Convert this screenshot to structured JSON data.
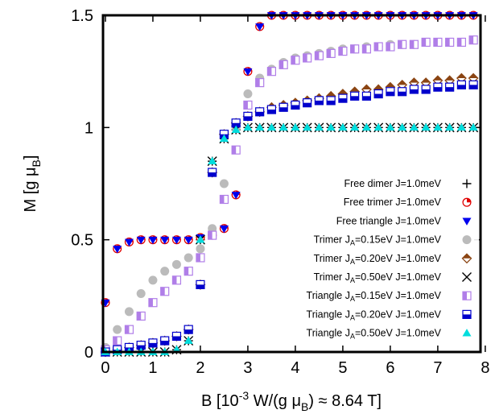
{
  "chart_data": {
    "type": "scatter",
    "xlabel": {
      "main": "B [10",
      "sup": "-3",
      "mid": " W/(g μ",
      "sub": "B",
      "tail": ") ≈ 8.64 T]"
    },
    "ylabel": {
      "main": "M [g μ",
      "sub": "B",
      "tail": "]"
    },
    "xlim": [
      -0.05,
      7.9
    ],
    "ylim": [
      0,
      1.5
    ],
    "xticks": [
      "0",
      "1",
      "2",
      "3",
      "4",
      "5",
      "6",
      "7",
      "8"
    ],
    "yticks": [
      "0",
      "0.5",
      "1",
      "1.5"
    ],
    "legend_position": "bottom-right",
    "series": [
      {
        "name": "Free dimer J=1.0meV",
        "label_parts": [
          "Free dimer J=1.0meV"
        ],
        "marker": "plus",
        "color": "#000000",
        "y": [
          0,
          0,
          0,
          0,
          0,
          0,
          0.01,
          0.05,
          0.5,
          0.85,
          0.95,
          0.99,
          1.0,
          1.0,
          1.0,
          1.0,
          1.0,
          1.0,
          1.0,
          1.0,
          1.0,
          1.0,
          1.0,
          1.0,
          1.0,
          1.0,
          1.0,
          1.0,
          1.0,
          1.0,
          1.0,
          1.0
        ]
      },
      {
        "name": "Free trimer J=1.0meV",
        "label_parts": [
          "Free trimer J=1.0meV"
        ],
        "marker": "circle-half",
        "color": "#e00000",
        "y": [
          0.22,
          0.46,
          0.49,
          0.5,
          0.5,
          0.5,
          0.5,
          0.5,
          0.51,
          0.52,
          0.55,
          0.7,
          1.25,
          1.45,
          1.5,
          1.5,
          1.5,
          1.5,
          1.5,
          1.5,
          1.5,
          1.5,
          1.5,
          1.5,
          1.5,
          1.5,
          1.5,
          1.5,
          1.5,
          1.5,
          1.5,
          1.5
        ]
      },
      {
        "name": "Free triangle J=1.0meV",
        "label_parts": [
          "Free triangle J=1.0meV"
        ],
        "marker": "triangle-down",
        "color": "#0000ee",
        "y": [
          0.22,
          0.46,
          0.49,
          0.5,
          0.5,
          0.5,
          0.5,
          0.5,
          0.51,
          0.52,
          0.55,
          0.7,
          1.25,
          1.45,
          1.5,
          1.5,
          1.5,
          1.5,
          1.5,
          1.5,
          1.5,
          1.5,
          1.5,
          1.5,
          1.5,
          1.5,
          1.5,
          1.5,
          1.5,
          1.5,
          1.5,
          1.5
        ]
      },
      {
        "name": "Trimer JA=0.15eV J=1.0meV",
        "label_parts": [
          "Trimer J",
          "A",
          "=0.15eV J=1.0meV"
        ],
        "marker": "circle",
        "color": "#bbbbbb",
        "y": [
          0.02,
          0.1,
          0.18,
          0.26,
          0.32,
          0.36,
          0.39,
          0.42,
          0.46,
          0.55,
          0.75,
          1.0,
          1.15,
          1.22,
          1.26,
          1.29,
          1.31,
          1.32,
          1.33,
          1.34,
          1.35,
          1.35,
          1.36,
          1.36,
          1.37,
          1.37,
          1.37,
          1.38,
          1.38,
          1.38,
          1.38,
          1.39
        ]
      },
      {
        "name": "Trimer JA=0.20eV J=1.0meV",
        "label_parts": [
          "Trimer J",
          "A",
          "=0.20eV J=1.0meV"
        ],
        "marker": "diamond-half",
        "color": "#8b4513",
        "y": [
          0.0,
          0.01,
          0.02,
          0.03,
          0.04,
          0.05,
          0.07,
          0.1,
          0.3,
          0.8,
          0.97,
          1.02,
          1.05,
          1.07,
          1.09,
          1.1,
          1.11,
          1.12,
          1.13,
          1.14,
          1.15,
          1.16,
          1.17,
          1.17,
          1.18,
          1.19,
          1.2,
          1.2,
          1.21,
          1.21,
          1.22,
          1.22
        ]
      },
      {
        "name": "Trimer JA=0.50eV J=1.0meV",
        "label_parts": [
          "Trimer J",
          "A",
          "=0.50eV J=1.0meV"
        ],
        "marker": "cross",
        "color": "#000000",
        "y": [
          0,
          0,
          0,
          0,
          0,
          0,
          0.01,
          0.05,
          0.5,
          0.85,
          0.95,
          0.99,
          1.0,
          1.0,
          1.0,
          1.0,
          1.0,
          1.0,
          1.0,
          1.0,
          1.0,
          1.0,
          1.0,
          1.0,
          1.0,
          1.0,
          1.0,
          1.0,
          1.0,
          1.0,
          1.0,
          1.0
        ]
      },
      {
        "name": "Triangle JA=0.15eV J=1.0meV",
        "label_parts": [
          "Triangle J",
          "A",
          "=0.15eV J=1.0meV"
        ],
        "marker": "square-half-v",
        "color": "#b07ee8",
        "y": [
          0.01,
          0.05,
          0.1,
          0.16,
          0.22,
          0.27,
          0.32,
          0.36,
          0.42,
          0.52,
          0.68,
          0.9,
          1.1,
          1.2,
          1.25,
          1.28,
          1.3,
          1.31,
          1.32,
          1.33,
          1.34,
          1.35,
          1.35,
          1.36,
          1.36,
          1.37,
          1.37,
          1.38,
          1.38,
          1.38,
          1.38,
          1.39
        ]
      },
      {
        "name": "Triangle JA=0.20eV J=1.0meV",
        "label_parts": [
          "Triangle J",
          "A",
          "=0.20eV J=1.0meV"
        ],
        "marker": "square-half-h",
        "color": "#0000cc",
        "y": [
          0.0,
          0.01,
          0.02,
          0.03,
          0.04,
          0.05,
          0.07,
          0.1,
          0.3,
          0.8,
          0.97,
          1.02,
          1.05,
          1.07,
          1.08,
          1.09,
          1.1,
          1.11,
          1.12,
          1.12,
          1.13,
          1.14,
          1.14,
          1.15,
          1.16,
          1.16,
          1.17,
          1.17,
          1.18,
          1.18,
          1.19,
          1.19
        ]
      },
      {
        "name": "Triangle JA=0.50eV J=1.0meV",
        "label_parts": [
          "Triangle J",
          "A",
          "=0.50eV J=1.0meV"
        ],
        "marker": "triangle-up",
        "color": "#00dddd",
        "y": [
          0,
          0,
          0,
          0,
          0,
          0,
          0.01,
          0.05,
          0.5,
          0.85,
          0.95,
          0.99,
          1.0,
          1.0,
          1.0,
          1.0,
          1.0,
          1.0,
          1.0,
          1.0,
          1.0,
          1.0,
          1.0,
          1.0,
          1.0,
          1.0,
          1.0,
          1.0,
          1.0,
          1.0,
          1.0,
          1.0
        ]
      }
    ],
    "x": [
      0,
      0.25,
      0.5,
      0.75,
      1.0,
      1.25,
      1.5,
      1.75,
      2.0,
      2.25,
      2.5,
      2.75,
      3.0,
      3.25,
      3.5,
      3.75,
      4.0,
      4.25,
      4.5,
      4.75,
      5.0,
      5.25,
      5.5,
      5.75,
      6.0,
      6.25,
      6.5,
      6.75,
      7.0,
      7.25,
      7.5,
      7.75
    ]
  }
}
